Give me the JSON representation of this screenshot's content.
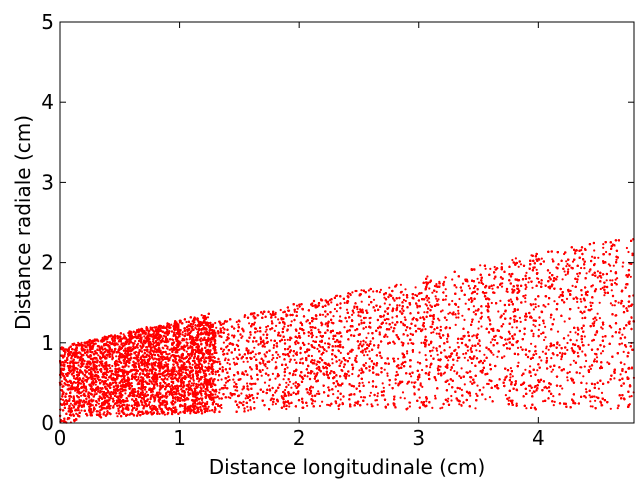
{
  "chart_data": {
    "type": "scatter",
    "xlabel": "Distance longitudinale (cm)",
    "ylabel": "Distance radiale (cm)",
    "xlim": [
      0,
      4.8
    ],
    "ylim": [
      0,
      5
    ],
    "xticks": [
      "0",
      "1",
      "2",
      "3",
      "4"
    ],
    "yticks": [
      "0",
      "1",
      "2",
      "3",
      "4",
      "5"
    ],
    "grid": false,
    "marker_color": "#ff0000",
    "series": [
      {
        "description_points": [
          [
            0.0,
            0.0
          ],
          [
            0.0,
            0.95
          ],
          [
            0.1,
            1.0
          ],
          [
            0.3,
            1.08
          ],
          [
            0.5,
            1.2
          ],
          [
            0.7,
            1.32
          ],
          [
            0.9,
            1.38
          ],
          [
            1.1,
            1.45
          ],
          [
            1.25,
            1.48
          ],
          [
            1.0,
            1.2
          ],
          [
            1.2,
            1.35
          ],
          [
            1.4,
            1.45
          ],
          [
            1.6,
            1.52
          ],
          [
            1.8,
            1.58
          ],
          [
            2.0,
            1.62
          ],
          [
            2.2,
            1.7
          ],
          [
            2.4,
            1.75
          ],
          [
            2.6,
            1.78
          ],
          [
            2.8,
            1.8
          ],
          [
            3.0,
            1.84
          ],
          [
            3.2,
            1.86
          ],
          [
            3.4,
            1.92
          ],
          [
            3.6,
            1.98
          ],
          [
            3.8,
            2.04
          ],
          [
            4.0,
            2.12
          ],
          [
            4.2,
            2.18
          ],
          [
            4.4,
            2.24
          ],
          [
            4.6,
            2.3
          ],
          [
            4.8,
            2.35
          ],
          [
            1.0,
            0.1
          ],
          [
            2.0,
            0.15
          ],
          [
            3.0,
            0.18
          ],
          [
            4.0,
            0.15
          ],
          [
            4.8,
            0.1
          ]
        ]
      }
    ]
  }
}
